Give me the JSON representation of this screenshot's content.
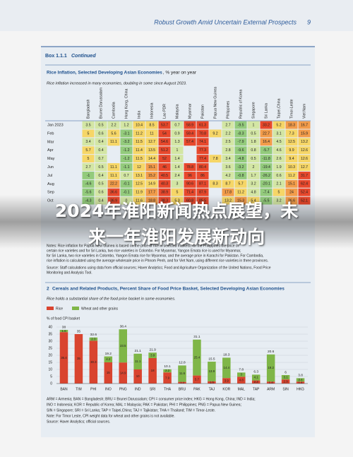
{
  "header": {
    "title": "Robust Growth Amid Uncertain External Prospects",
    "page": "9"
  },
  "box": {
    "label": "Box 1.1.1",
    "status": "Continued"
  },
  "overlay_title": [
    "2024年淮阳新闻热点展望，未",
    "来一年淮阳发展新动向"
  ],
  "table": {
    "title": "Rice Inflation, Selected Developing Asian Economies",
    "unit": ", % year on year",
    "subtitle": "Rice inflation increased in many economies, doubling in some since August 2023.",
    "columns": [
      "Bangladesh",
      "Brunei Darussalam",
      "Cambodia",
      "Hong Kong, China",
      "India",
      "Indonesia",
      "Lao PDR",
      "Malaysia",
      "Myanmar",
      "Pakistan",
      "Papua New Guinea",
      "Philippines",
      "Republic of Korea",
      "Singapore",
      "Sri Lanka",
      "Taipei,China",
      "Timor-Leste",
      "Viet Nam"
    ],
    "rows": [
      {
        "label": "Jan 2023",
        "values": [
          3.5,
          0.5,
          2.2,
          1.2,
          10.4,
          8.5,
          53.7,
          0.7,
          58.9,
          61.3,
          null,
          2.7,
          -9.5,
          1.0,
          33.2,
          5.2,
          18.3,
          16.7
        ]
      },
      {
        "label": "Feb",
        "values": [
          5.0,
          0.6,
          5.6,
          -3.1,
          11.2,
          11.0,
          54.0,
          0.9,
          59.4,
          70.8,
          9.2,
          2.2,
          -8.3,
          0.5,
          22.7,
          3.1,
          7.3,
          15.9
        ]
      },
      {
        "label": "Mar",
        "values": [
          3.4,
          0.4,
          11.1,
          -3.2,
          11.5,
          12.7,
          54.6,
          1.3,
          57.4,
          74.1,
          null,
          2.5,
          -7.9,
          1.8,
          16.4,
          4.5,
          12.5,
          13.2
        ]
      },
      {
        "label": "Apr",
        "values": [
          5.7,
          0.4,
          null,
          -1.2,
          11.4,
          13.5,
          51.2,
          1.0,
          null,
          77.3,
          null,
          2.8,
          -9.6,
          0.8,
          -5.7,
          4.6,
          9.9,
          12.6
        ]
      },
      {
        "label": "May",
        "values": [
          5.0,
          0.7,
          null,
          -1.2,
          11.5,
          14.4,
          52.0,
          1.4,
          null,
          77.4,
          7.8,
          3.4,
          -4.8,
          0.5,
          -11.8,
          2.6,
          9.4,
          12.6
        ]
      },
      {
        "label": "Jun",
        "values": [
          2.7,
          0.5,
          11.1,
          -1.1,
          12.0,
          15.1,
          46.0,
          1.4,
          78.8,
          80.4,
          null,
          3.6,
          -3.2,
          2.0,
          -19.4,
          1.9,
          10.3,
          12.7
        ]
      },
      {
        "label": "Jul",
        "values": [
          -1.0,
          0.4,
          11.1,
          0.7,
          13.1,
          15.2,
          40.5,
          2.4,
          96.0,
          86.0,
          null,
          4.2,
          -0.8,
          1.7,
          -26.2,
          0.6,
          11.2,
          31.7
        ]
      },
      {
        "label": "Aug",
        "values": [
          -4.6,
          0.5,
          22.2,
          -0.1,
          12.5,
          14.9,
          40.3,
          3.0,
          90.6,
          87.1,
          8.3,
          8.7,
          5.7,
          3.2,
          -20.1,
          2.1,
          15.1,
          62.4
        ]
      },
      {
        "label": "Sep",
        "values": [
          -5.6,
          0.6,
          36.6,
          -0.1,
          11.9,
          17.7,
          38.9,
          5.0,
          71.4,
          87.9,
          null,
          17.8,
          11.2,
          4.8,
          -7.4,
          5.0,
          24.0,
          52.4
        ]
      },
      {
        "label": "Oct",
        "values": [
          -4.3,
          0.4,
          36.9,
          0.0,
          11.6,
          18.8,
          38.3,
          5.3,
          60.8,
          85.5,
          null,
          13.2,
          15.3,
          5.4,
          -5.5,
          3.2,
          26.6,
          52.1
        ]
      }
    ],
    "notes": [
      "Notes: Rice inflation for Papua New Guinea is based on the price of rice in selected markets, for the Philippines the price of",
      "certain rice varieties and for Sri Lanka, two rice varieties in Colombo. For Myanmar, Yangon Emata rice is used for Myanmar,",
      "for Sri Lanka, two rice varieties in Colombo, Yangon Emata rice for Myanmar, and the average price in Karachi for Pakistan. For Cambodia,",
      "rice inflation is calculated using the average wholesale price in Phnom Penh, and for Viet Nam, using different rice varieties in three provinces."
    ],
    "source": [
      "Source: Staff calculations using data from official sources; Haver Analytics; Food and Agriculture Organization of the United Nations, Food Price",
      "Monitoring and Analysis Tool."
    ]
  },
  "chart_data": {
    "type": "stacked_bar",
    "number": "2",
    "title": "Cereals and Related Products, Percent Share of Food Price Basket, Selected Developing Asian Economies",
    "subtitle": "Rice holds a substantial share of the food price basket in some economies.",
    "y_label": "% of food CPI basket",
    "categories": [
      "BAN",
      "TIM",
      "PHI",
      "INO",
      "PNG",
      "IND",
      "SRI",
      "THA",
      "BRU",
      "PAK",
      "TAJ",
      "KOR",
      "MAL",
      "TAP",
      "ARM",
      "SIN",
      "HKG"
    ],
    "series": [
      {
        "name": "Rice",
        "color": "#d9442f",
        "values": [
          36.4,
          35.0,
          30.3,
          15.0,
          14.9,
          10.0,
          18.0,
          7.9,
          1.2,
          5.7,
          1.6,
          3.9,
          4.8,
          2.2,
          1.4,
          2.9,
          1.4
        ]
      },
      {
        "name": "Wheat and other grains",
        "color": "#7fb648",
        "values": [
          1.6,
          null,
          2.3,
          4.2,
          23.5,
          11.1,
          3.9,
          2.2,
          11.6,
          25.4,
          13.9,
          14.4,
          3.0,
          4.1,
          19.2,
          3.1,
          2.4
        ]
      }
    ],
    "totals": [
      38.0,
      35.0,
      32.6,
      19.2,
      38.4,
      21.1,
      21.9,
      10.1,
      12.8,
      31.1,
      15.5,
      18.3,
      7.8,
      6.3,
      20.6,
      6.0,
      3.8
    ],
    "ylim": [
      0,
      40
    ],
    "yticks": [
      0,
      5,
      10,
      15,
      20,
      25,
      30,
      35,
      40
    ],
    "grid": true,
    "footnotes": [
      "ARM = Armenia; BAN = Bangladesh; BRU = Brunei Darussalam; CPI = consumer price index; HKG = Hong Kong, China; IND = India;",
      "INO = Indonesia; KOR = Republic of Korea; MAL = Malaysia; PAK = Pakistan; PHI = Philippines; PNG = Papua New Guinea;",
      "SIN = Singapore; SRI = Sri Lanka; TAP = Taipei,China; TAJ = Tajikistan; THA = Thailand; TIM = Timor-Leste.",
      "Note: For Timor Leste, CPI weight data for wheat and other grains is not available.",
      "Source: Haver Analytics; official sources."
    ]
  }
}
